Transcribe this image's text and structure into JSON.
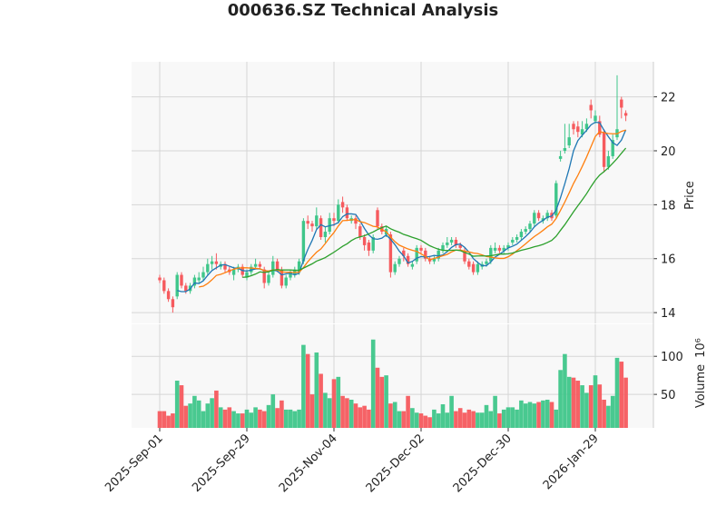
{
  "chart_data": {
    "type": "candlestick",
    "title": "000636.SZ Technical Analysis",
    "ylabel": "Price",
    "volume_label": "Volume",
    "volume_offset_label": "10⁶",
    "up_color": "#3fc68a",
    "down_color": "#f65a5e",
    "grid": true,
    "categories": [
      "2025-Sep-01",
      null,
      null,
      null,
      null,
      null,
      null,
      null,
      null,
      null,
      null,
      null,
      null,
      null,
      null,
      null,
      null,
      null,
      null,
      null,
      "2025-Sep-29",
      null,
      null,
      null,
      null,
      null,
      null,
      null,
      null,
      null,
      null,
      null,
      null,
      null,
      null,
      null,
      null,
      null,
      null,
      null,
      "2025-Nov-04",
      null,
      null,
      null,
      null,
      null,
      null,
      null,
      null,
      null,
      null,
      null,
      null,
      null,
      null,
      null,
      null,
      null,
      null,
      null,
      "2025-Dec-02",
      null,
      null,
      null,
      null,
      null,
      null,
      null,
      null,
      null,
      null,
      null,
      null,
      null,
      null,
      null,
      null,
      null,
      null,
      null,
      "2025-Dec-30",
      null,
      null,
      null,
      null,
      null,
      null,
      null,
      null,
      null,
      null,
      null,
      null,
      null,
      null,
      null,
      null,
      null,
      null,
      null,
      "2026-Jan-29",
      null,
      null,
      null,
      null,
      null,
      null,
      null
    ],
    "open": [
      15.3,
      15.2,
      14.8,
      14.5,
      14.6,
      15.4,
      15.0,
      14.8,
      15.0,
      15.2,
      15.3,
      15.5,
      15.8,
      15.9,
      15.7,
      15.8,
      15.6,
      15.4,
      15.6,
      15.7,
      15.3,
      15.5,
      15.7,
      15.8,
      15.6,
      15.1,
      15.4,
      15.9,
      15.6,
      15.0,
      15.3,
      15.4,
      15.5,
      15.9,
      17.4,
      17.3,
      17.2,
      17.5,
      16.8,
      17.0,
      17.5,
      17.4,
      18.1,
      17.9,
      17.4,
      17.5,
      17.2,
      16.8,
      16.6,
      16.3,
      17.8,
      17.2,
      16.9,
      16.9,
      15.5,
      15.8,
      16.3,
      16.1,
      15.7,
      15.9,
      16.4,
      16.3,
      16.0,
      15.9,
      16.0,
      16.3,
      16.5,
      16.6,
      16.7,
      16.5,
      16.3,
      15.9,
      15.8,
      15.5,
      15.7,
      15.8,
      15.9,
      16.3,
      16.4,
      16.3,
      16.4,
      16.6,
      16.7,
      16.8,
      17.0,
      17.1,
      17.3,
      17.7,
      17.4,
      17.5,
      17.7,
      17.6,
      19.7,
      20.0,
      20.2,
      21.0,
      20.9,
      20.6,
      20.8,
      21.7,
      21.1,
      21.1,
      20.7,
      19.4,
      19.8,
      20.5,
      21.9,
      21.4
    ],
    "high": [
      15.4,
      15.3,
      14.9,
      14.6,
      15.5,
      15.5,
      15.1,
      15.1,
      15.4,
      15.5,
      15.7,
      16.0,
      16.1,
      16.2,
      15.9,
      15.9,
      15.7,
      15.7,
      15.8,
      15.8,
      15.6,
      15.8,
      16.0,
      15.9,
      15.7,
      15.5,
      16.1,
      16.0,
      15.7,
      15.4,
      15.6,
      15.7,
      16.0,
      17.5,
      17.6,
      17.4,
      17.9,
      17.6,
      17.2,
      17.7,
      17.7,
      18.2,
      18.3,
      18.0,
      17.6,
      17.6,
      17.3,
      16.9,
      16.7,
      16.9,
      17.9,
      17.3,
      17.2,
      17.0,
      15.9,
      16.1,
      16.4,
      16.2,
      15.9,
      16.5,
      16.5,
      16.4,
      16.1,
      16.1,
      16.4,
      16.6,
      16.8,
      16.8,
      16.8,
      16.6,
      16.4,
      16.0,
      15.9,
      15.9,
      15.9,
      16.0,
      16.5,
      16.6,
      16.5,
      16.5,
      16.6,
      16.8,
      16.9,
      17.1,
      17.2,
      17.4,
      17.8,
      17.8,
      17.6,
      17.8,
      17.8,
      18.9,
      20.0,
      21.0,
      21.0,
      21.1,
      21.1,
      21.1,
      21.2,
      21.9,
      21.5,
      21.3,
      20.8,
      20.0,
      20.6,
      22.8,
      22.0,
      21.5
    ],
    "low": [
      15.1,
      14.7,
      14.4,
      14.0,
      14.5,
      14.9,
      14.7,
      14.7,
      14.9,
      15.1,
      15.2,
      15.4,
      15.6,
      15.6,
      15.6,
      15.5,
      15.4,
      15.2,
      15.5,
      15.3,
      15.2,
      15.4,
      15.6,
      15.6,
      14.9,
      15.0,
      15.3,
      15.5,
      14.9,
      14.9,
      15.2,
      15.3,
      15.4,
      15.8,
      17.1,
      17.0,
      17.1,
      16.7,
      16.6,
      16.9,
      17.2,
      17.3,
      17.7,
      17.4,
      17.3,
      17.1,
      16.7,
      16.3,
      16.1,
      16.2,
      17.1,
      16.9,
      16.8,
      15.3,
      15.4,
      15.7,
      15.9,
      15.7,
      15.6,
      15.8,
      16.2,
      15.9,
      15.8,
      15.8,
      15.9,
      16.2,
      16.4,
      16.5,
      16.4,
      16.3,
      15.8,
      15.6,
      15.4,
      15.4,
      15.6,
      15.7,
      15.8,
      16.2,
      16.2,
      16.2,
      16.3,
      16.5,
      16.6,
      16.7,
      16.9,
      17.0,
      17.2,
      17.4,
      17.3,
      17.4,
      17.4,
      17.5,
      19.6,
      19.9,
      20.1,
      20.6,
      20.5,
      20.5,
      20.7,
      21.2,
      21.0,
      20.5,
      19.2,
      19.3,
      19.7,
      20.4,
      21.2,
      21.1
    ],
    "close": [
      15.2,
      14.8,
      14.5,
      14.2,
      15.4,
      15.0,
      14.8,
      15.0,
      15.3,
      15.3,
      15.5,
      15.8,
      15.9,
      15.8,
      15.8,
      15.6,
      15.5,
      15.6,
      15.7,
      15.4,
      15.5,
      15.7,
      15.8,
      15.7,
      15.1,
      15.4,
      15.9,
      15.6,
      15.0,
      15.3,
      15.5,
      15.6,
      15.9,
      17.4,
      17.3,
      17.2,
      17.6,
      16.8,
      17.0,
      17.5,
      17.4,
      18.0,
      17.9,
      17.5,
      17.5,
      17.3,
      16.8,
      16.5,
      16.3,
      16.8,
      17.2,
      17.0,
      17.1,
      15.5,
      15.8,
      16.0,
      16.1,
      15.8,
      15.8,
      16.4,
      16.3,
      16.0,
      15.9,
      16.0,
      16.3,
      16.5,
      16.6,
      16.7,
      16.5,
      16.4,
      15.9,
      15.7,
      15.5,
      15.8,
      15.8,
      15.9,
      16.4,
      16.4,
      16.3,
      16.4,
      16.5,
      16.7,
      16.8,
      17.0,
      17.1,
      17.3,
      17.7,
      17.5,
      17.5,
      17.7,
      17.5,
      18.8,
      19.8,
      20.1,
      20.5,
      20.8,
      20.7,
      20.8,
      21.0,
      21.5,
      21.3,
      20.6,
      19.4,
      19.8,
      20.4,
      20.8,
      21.6,
      21.3
    ],
    "volume": [
      28,
      28,
      22,
      25,
      68,
      62,
      35,
      38,
      48,
      42,
      28,
      38,
      45,
      55,
      33,
      30,
      33,
      28,
      25,
      25,
      30,
      26,
      33,
      30,
      28,
      36,
      50,
      32,
      42,
      30,
      30,
      28,
      30,
      115,
      103,
      50,
      105,
      77,
      52,
      45,
      70,
      73,
      48,
      45,
      43,
      38,
      33,
      35,
      30,
      122,
      85,
      73,
      75,
      38,
      40,
      28,
      28,
      48,
      32,
      26,
      25,
      22,
      20,
      30,
      25,
      37,
      26,
      48,
      28,
      32,
      26,
      30,
      28,
      26,
      26,
      36,
      28,
      48,
      25,
      30,
      33,
      33,
      30,
      42,
      38,
      40,
      38,
      40,
      42,
      43,
      40,
      30,
      82,
      103,
      73,
      72,
      68,
      62,
      52,
      62,
      75,
      63,
      43,
      35,
      48,
      98,
      93,
      72
    ],
    "series": [
      {
        "color": "#1f77b4",
        "values": [
          null,
          null,
          null,
          null,
          14.82,
          14.78,
          14.78,
          14.88,
          15.1,
          15.08,
          15.18,
          15.38,
          15.56,
          15.66,
          15.76,
          15.78,
          15.72,
          15.66,
          15.64,
          15.56,
          15.54,
          15.58,
          15.62,
          15.62,
          15.56,
          15.54,
          15.58,
          15.54,
          15.4,
          15.44,
          15.46,
          15.4,
          15.46,
          15.94,
          16.34,
          16.68,
          17.08,
          17.26,
          17.18,
          17.22,
          17.26,
          17.34,
          17.56,
          17.66,
          17.66,
          17.64,
          17.4,
          17.12,
          16.88,
          16.74,
          16.72,
          16.76,
          16.88,
          16.72,
          16.52,
          16.28,
          16.1,
          15.84,
          15.9,
          16.02,
          16.08,
          16.06,
          16.08,
          16.12,
          16.1,
          16.14,
          16.26,
          16.42,
          16.52,
          16.54,
          16.42,
          16.24,
          16.0,
          15.86,
          15.74,
          15.74,
          15.88,
          16.06,
          16.16,
          16.28,
          16.4,
          16.46,
          16.54,
          16.68,
          16.82,
          16.98,
          17.18,
          17.32,
          17.42,
          17.54,
          17.58,
          17.8,
          18.26,
          18.78,
          19.34,
          20.0,
          20.38,
          20.58,
          20.76,
          20.96,
          21.06,
          21.04,
          20.76,
          20.52,
          20.3,
          20.2,
          20.4,
          20.78
        ]
      },
      {
        "color": "#ff7f0e",
        "values": [
          null,
          null,
          null,
          null,
          null,
          null,
          null,
          null,
          null,
          14.95,
          14.98,
          15.08,
          15.22,
          15.38,
          15.42,
          15.48,
          15.55,
          15.61,
          15.65,
          15.66,
          15.66,
          15.65,
          15.64,
          15.63,
          15.56,
          15.54,
          15.58,
          15.58,
          15.51,
          15.5,
          15.5,
          15.49,
          15.5,
          15.67,
          15.89,
          16.07,
          16.24,
          16.36,
          16.56,
          16.78,
          16.97,
          17.21,
          17.41,
          17.42,
          17.44,
          17.45,
          17.37,
          17.34,
          17.27,
          17.2,
          17.18,
          17.08,
          17.0,
          16.8,
          16.63,
          16.5,
          16.43,
          16.36,
          16.31,
          16.27,
          16.18,
          16.08,
          15.96,
          16.01,
          16.06,
          16.11,
          16.16,
          16.25,
          16.32,
          16.32,
          16.28,
          16.25,
          16.21,
          16.19,
          16.14,
          16.08,
          16.06,
          16.03,
          16.01,
          16.01,
          16.07,
          16.17,
          16.3,
          16.42,
          16.55,
          16.69,
          16.82,
          16.93,
          17.05,
          17.18,
          17.28,
          17.49,
          17.79,
          18.1,
          18.44,
          18.79,
          19.09,
          19.42,
          19.77,
          20.15,
          20.53,
          20.71,
          20.67,
          20.64,
          20.63,
          20.63,
          20.72,
          20.77
        ]
      },
      {
        "color": "#2ca02c",
        "values": [
          null,
          null,
          null,
          null,
          null,
          null,
          null,
          null,
          null,
          null,
          null,
          null,
          null,
          null,
          null,
          null,
          null,
          null,
          null,
          15.31,
          15.32,
          15.37,
          15.43,
          15.51,
          15.49,
          15.51,
          15.57,
          15.6,
          15.58,
          15.58,
          15.58,
          15.57,
          15.57,
          15.65,
          15.73,
          15.81,
          15.91,
          15.97,
          16.04,
          16.14,
          16.24,
          16.35,
          16.46,
          16.55,
          16.67,
          16.76,
          16.81,
          16.85,
          16.92,
          16.99,
          17.08,
          17.15,
          17.21,
          17.11,
          17.04,
          16.98,
          16.9,
          16.85,
          16.79,
          16.74,
          16.68,
          16.58,
          16.48,
          16.41,
          16.35,
          16.31,
          16.3,
          16.31,
          16.32,
          16.3,
          16.23,
          16.17,
          16.09,
          16.1,
          16.1,
          16.1,
          16.11,
          16.14,
          16.17,
          16.17,
          16.18,
          16.21,
          16.26,
          16.31,
          16.35,
          16.39,
          16.44,
          16.48,
          16.53,
          16.6,
          16.68,
          16.83,
          17.05,
          17.26,
          17.5,
          17.74,
          17.96,
          18.18,
          18.41,
          18.67,
          18.91,
          19.1,
          19.23,
          19.37,
          19.54,
          19.71,
          19.91,
          20.1
        ]
      }
    ],
    "ylim": [
      13.6,
      23.3
    ],
    "yticks": [
      14,
      16,
      18,
      20,
      22
    ],
    "volume_ylim": [
      6,
      142
    ],
    "volume_yticks": [
      50,
      100
    ]
  }
}
